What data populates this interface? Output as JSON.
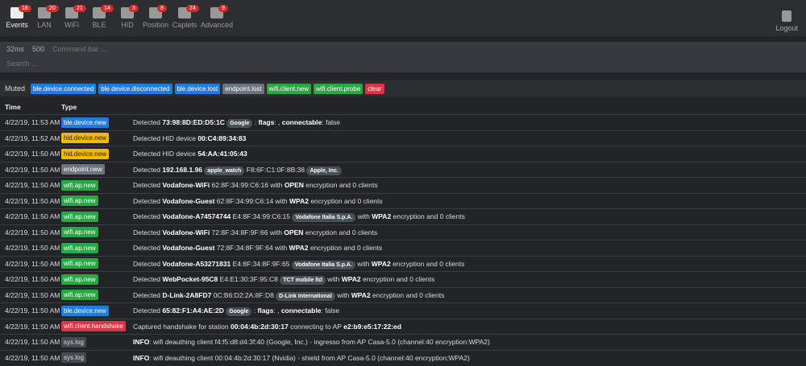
{
  "nav": {
    "items": [
      {
        "label": "Events",
        "badge": 16
      },
      {
        "label": "LAN",
        "badge": 20
      },
      {
        "label": "WiFi",
        "badge": 21
      },
      {
        "label": "BLE",
        "badge": 14
      },
      {
        "label": "HID",
        "badge": 3
      },
      {
        "label": "Position",
        "badge": 8
      },
      {
        "label": "Caplets",
        "badge": 24
      },
      {
        "label": "Advanced",
        "badge": 9
      }
    ],
    "logout": "Logout"
  },
  "toolbar": {
    "latency": "32ms",
    "limit": "500",
    "command_placeholder": "Command bar ...",
    "search_placeholder": "Search ..."
  },
  "muted": {
    "label": "Muted",
    "tags": [
      {
        "text": "ble.device.connected",
        "style": "primary"
      },
      {
        "text": "ble.device.disconnected",
        "style": "primary"
      },
      {
        "text": "ble.device.lost",
        "style": "primary"
      },
      {
        "text": "endpoint.lost",
        "style": "secondary"
      },
      {
        "text": "wifi.client.new",
        "style": "success"
      },
      {
        "text": "wifi.client.probe",
        "style": "success"
      },
      {
        "text": "clear",
        "style": "danger"
      }
    ]
  },
  "table": {
    "headers": [
      "Time",
      "Type"
    ],
    "rows": [
      {
        "time": "4/22/19, 11:53 AM",
        "type": "ble.device.new",
        "style": "primary",
        "message": [
          {
            "text": "Detected "
          },
          {
            "bold": "73:98:8D:ED:D5:1C"
          },
          {
            "text": " "
          },
          {
            "badge": "Google"
          },
          {
            "text": " : "
          },
          {
            "bold": "flags"
          },
          {
            "text": ": , "
          },
          {
            "bold": "connectable"
          },
          {
            "text": ": false"
          }
        ]
      },
      {
        "time": "4/22/19, 11:52 AM",
        "type": "hid.device.new",
        "style": "warning",
        "message": [
          {
            "text": "Detected HID device "
          },
          {
            "bold": "00:C4:89:34:83"
          }
        ]
      },
      {
        "time": "4/22/19, 11:50 AM",
        "type": "hid.device.new",
        "style": "warning",
        "message": [
          {
            "text": "Detected HID device "
          },
          {
            "bold": "54:AA:41:05:43"
          }
        ]
      },
      {
        "time": "4/22/19, 11:50 AM",
        "type": "endpoint.new",
        "style": "secondary",
        "message": [
          {
            "text": "Detected "
          },
          {
            "bold": "192.168.1.96"
          },
          {
            "text": " "
          },
          {
            "badge": "apple_watch"
          },
          {
            "text": " F8:6F:C1:0F:8B:38 "
          },
          {
            "badge": "Apple, Inc."
          }
        ]
      },
      {
        "time": "4/22/19, 11:50 AM",
        "type": "wifi.ap.new",
        "style": "success",
        "message": [
          {
            "text": "Detected "
          },
          {
            "bold": "Vodafone-WiFi"
          },
          {
            "text": " 62:8F:34:99:C6:16 with "
          },
          {
            "bold": "OPEN"
          },
          {
            "text": " encryption and 0 clients"
          }
        ]
      },
      {
        "time": "4/22/19, 11:50 AM",
        "type": "wifi.ap.new",
        "style": "success",
        "message": [
          {
            "text": "Detected "
          },
          {
            "bold": "Vodafone-Guest"
          },
          {
            "text": " 62:8F:34:99:C6:14 with "
          },
          {
            "bold": "WPA2"
          },
          {
            "text": " encryption and 0 clients"
          }
        ]
      },
      {
        "time": "4/22/19, 11:50 AM",
        "type": "wifi.ap.new",
        "style": "success",
        "message": [
          {
            "text": "Detected "
          },
          {
            "bold": "Vodafone-A74574744"
          },
          {
            "text": " E4:8F:34:99:C6:15 "
          },
          {
            "badge": "Vodafone Italia S.p.A."
          },
          {
            "text": " with "
          },
          {
            "bold": "WPA2"
          },
          {
            "text": " encryption and 0 clients"
          }
        ]
      },
      {
        "time": "4/22/19, 11:50 AM",
        "type": "wifi.ap.new",
        "style": "success",
        "message": [
          {
            "text": "Detected "
          },
          {
            "bold": "Vodafone-WiFi"
          },
          {
            "text": " 72:8F:34:8F:9F:66 with "
          },
          {
            "bold": "OPEN"
          },
          {
            "text": " encryption and 0 clients"
          }
        ]
      },
      {
        "time": "4/22/19, 11:50 AM",
        "type": "wifi.ap.new",
        "style": "success",
        "message": [
          {
            "text": "Detected "
          },
          {
            "bold": "Vodafone-Guest"
          },
          {
            "text": " 72:8F:34:8F:9F:64 with "
          },
          {
            "bold": "WPA2"
          },
          {
            "text": " encryption and 0 clients"
          }
        ]
      },
      {
        "time": "4/22/19, 11:50 AM",
        "type": "wifi.ap.new",
        "style": "success",
        "message": [
          {
            "text": "Detected "
          },
          {
            "bold": "Vodafone-A53271831"
          },
          {
            "text": " E4:8F:34:8F:9F:65 "
          },
          {
            "badge": "Vodafone Italia S.p.A."
          },
          {
            "text": " with "
          },
          {
            "bold": "WPA2"
          },
          {
            "text": " encryption and 0 clients"
          }
        ]
      },
      {
        "time": "4/22/19, 11:50 AM",
        "type": "wifi.ap.new",
        "style": "success",
        "message": [
          {
            "text": "Detected "
          },
          {
            "bold": "WebPocket-95C8"
          },
          {
            "text": " E4:E1:30:3F:95:C8 "
          },
          {
            "badge": "TCT mobile ltd"
          },
          {
            "text": " with "
          },
          {
            "bold": "WPA2"
          },
          {
            "text": " encryption and 0 clients"
          }
        ]
      },
      {
        "time": "4/22/19, 11:50 AM",
        "type": "wifi.ap.new",
        "style": "success",
        "message": [
          {
            "text": "Detected "
          },
          {
            "bold": "D-Link-2A8FD7"
          },
          {
            "text": " 0C:B6:D2:2A:8F:D8 "
          },
          {
            "badge": "D-Link International"
          },
          {
            "text": " with "
          },
          {
            "bold": "WPA2"
          },
          {
            "text": " encryption and 0 clients"
          }
        ]
      },
      {
        "time": "4/22/19, 11:50 AM",
        "type": "ble.device.new",
        "style": "primary",
        "message": [
          {
            "text": "Detected "
          },
          {
            "bold": "65:82:F1:A4:AE:2D"
          },
          {
            "text": " "
          },
          {
            "badge": "Google"
          },
          {
            "text": " : "
          },
          {
            "bold": "flags"
          },
          {
            "text": ": , "
          },
          {
            "bold": "connectable"
          },
          {
            "text": ": false"
          }
        ]
      },
      {
        "time": "4/22/19, 11:50 AM",
        "type": "wifi.client.handshake",
        "style": "danger",
        "message": [
          {
            "text": "Captured handshake for station "
          },
          {
            "bold": "00:04:4b:2d:30:17"
          },
          {
            "text": " connecting to AP "
          },
          {
            "bold": "e2:b9:e5:17:22:ed"
          }
        ]
      },
      {
        "time": "4/22/19, 11:50 AM",
        "type": "sys.log",
        "style": "dark",
        "message": [
          {
            "bold": "INFO"
          },
          {
            "text": ": wifi deauthing client f4:f5:d8:d4:3f:40 (Google, Inc.) - ingresso from AP Casa-5.0 (channel:40 encryption:WPA2)"
          }
        ]
      },
      {
        "time": "4/22/19, 11:50 AM",
        "type": "sys.log",
        "style": "dark",
        "message": [
          {
            "bold": "INFO"
          },
          {
            "text": ": wifi deauthing client 00:04:4b:2d:30:17 (Nvidia) - shield from AP Casa-5.0 (channel:40 encryption:WPA2)"
          }
        ]
      }
    ]
  }
}
